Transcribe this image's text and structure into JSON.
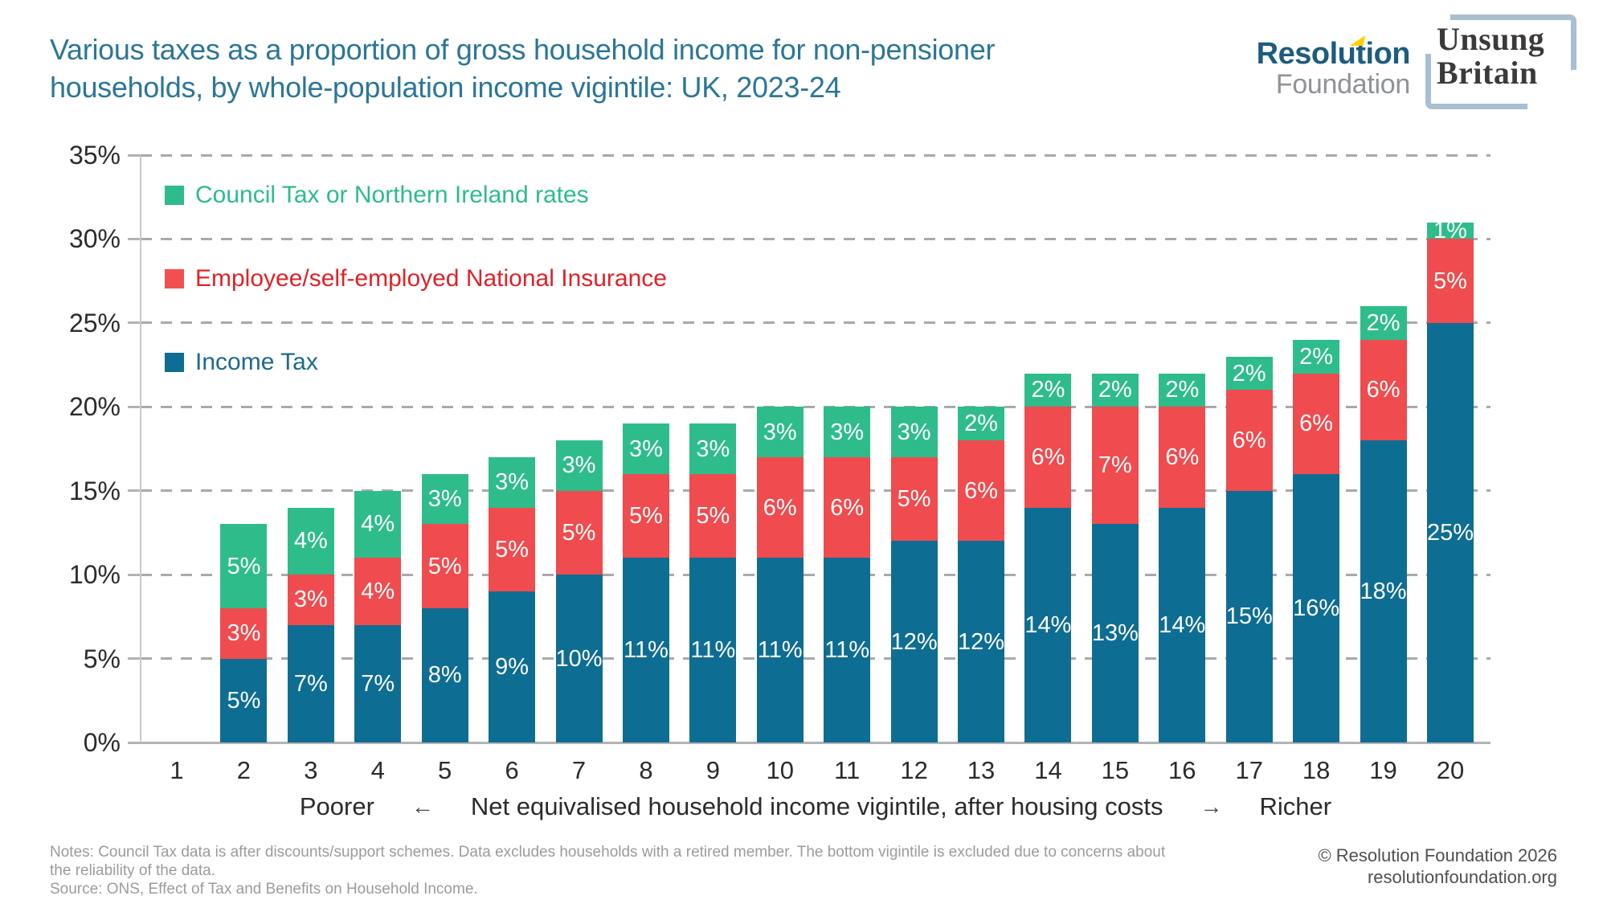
{
  "header": {
    "title_line1": "Various taxes as a proportion of gross household income for non-pensioner",
    "title_line2": "households, by whole-population income vigintile: UK, 2023-24",
    "logos": {
      "resolution": {
        "word1": "Resolution",
        "word2": "Foundation"
      },
      "unsung": {
        "line1": "Unsung",
        "line2": "Britain"
      }
    }
  },
  "chart_data": {
    "type": "bar",
    "stacked": true,
    "title": "Various taxes as a proportion of gross household income for non-pensioner households, by whole-population income vigintile: UK, 2023-24",
    "categories": [
      "1",
      "2",
      "3",
      "4",
      "5",
      "6",
      "7",
      "8",
      "9",
      "10",
      "11",
      "12",
      "13",
      "14",
      "15",
      "16",
      "17",
      "18",
      "19",
      "20"
    ],
    "series": [
      {
        "name": "Income Tax",
        "color": "#0e6d92",
        "values": [
          0,
          5,
          7,
          7,
          8,
          9,
          10,
          11,
          11,
          11,
          11,
          12,
          12,
          14,
          13,
          14,
          15,
          16,
          18,
          25
        ]
      },
      {
        "name": "Employee/self-employed National Insurance",
        "color": "#f04b4e",
        "values": [
          0,
          3,
          3,
          4,
          5,
          5,
          5,
          5,
          5,
          6,
          6,
          5,
          6,
          6,
          7,
          6,
          6,
          6,
          6,
          5
        ]
      },
      {
        "name": "Council Tax or Northern Ireland rates",
        "color": "#2ebc8b",
        "values": [
          0,
          5,
          4,
          4,
          3,
          3,
          3,
          3,
          3,
          3,
          3,
          3,
          2,
          2,
          2,
          2,
          2,
          2,
          2,
          1
        ]
      }
    ],
    "value_suffix": "%",
    "ylim": [
      0,
      35
    ],
    "ytick_labels": [
      "0%",
      "5%",
      "10%",
      "15%",
      "20%",
      "25%",
      "30%",
      "35%"
    ],
    "grid": "horizontal-dashed",
    "legend_position": "top-left-inside",
    "xlabel": "Net equivalised household income vigintile, after housing costs"
  },
  "legend": [
    {
      "label": "Council Tax or Northern Ireland rates",
      "swatch": "#2ebc8b",
      "text_color": "#2bbc8c"
    },
    {
      "label": "Employee/self-employed National Insurance",
      "swatch": "#f2504f",
      "text_color": "#e22128"
    },
    {
      "label": "Income Tax",
      "swatch": "#0e6d92",
      "text_color": "#1b698e"
    }
  ],
  "caption": {
    "poorer": "Poorer",
    "left_arrow": "←",
    "label": "Net equivalised household income vigintile, after housing costs",
    "right_arrow": "→",
    "richer": "Richer"
  },
  "footer": {
    "notes_lines": [
      "Notes: Council Tax data is after discounts/support schemes. Data excludes households with a retired member. The bottom vigintile is excluded due to concerns about",
      "the reliability of the data.",
      "Source: ONS, Effect of Tax and Benefits on Household Income."
    ],
    "copyright": "© Resolution Foundation 2026",
    "website": "resolutionfoundation.org"
  }
}
